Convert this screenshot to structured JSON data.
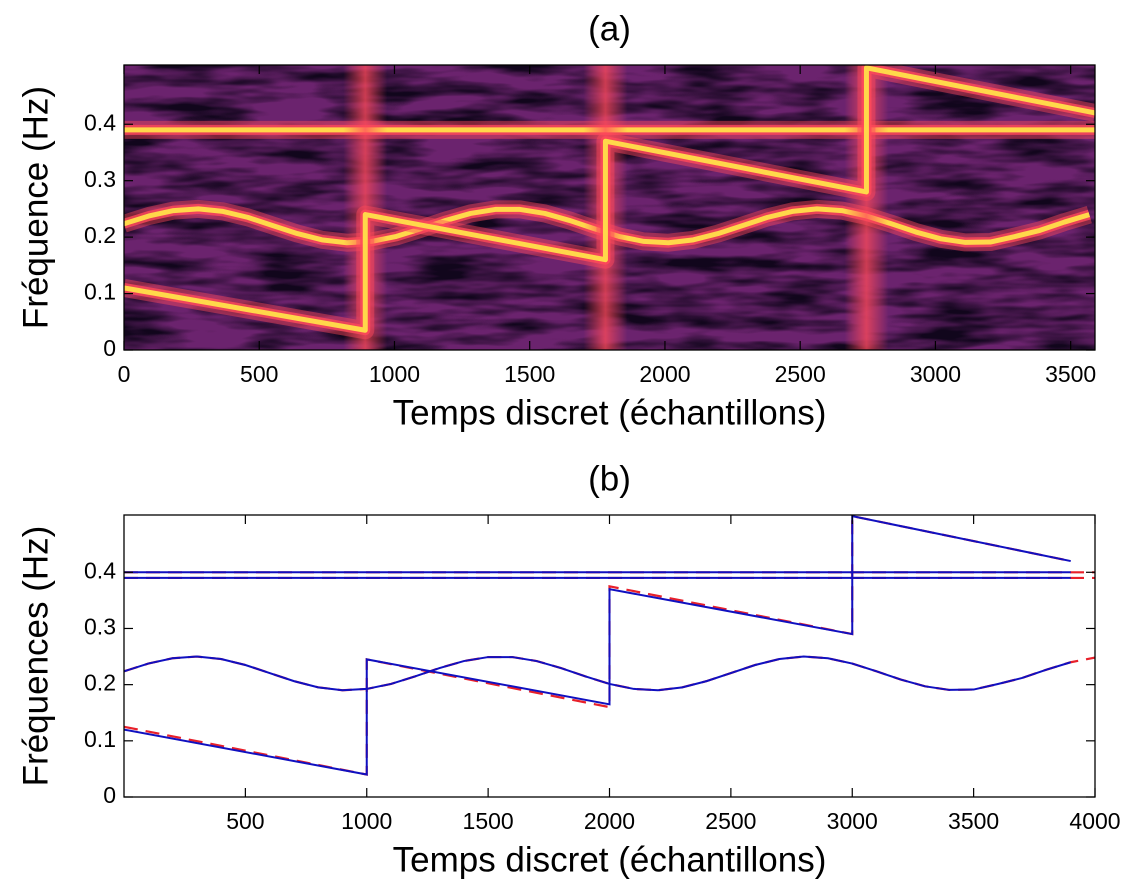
{
  "chart_data": [
    {
      "type": "spectrogram",
      "title": "(a)",
      "xlabel": "Temps discret (échantillons)",
      "ylabel": "Fréquence (Hz)",
      "xlim": [
        0,
        3590
      ],
      "ylim": [
        0,
        0.505
      ],
      "xticks": [
        0,
        500,
        1000,
        1500,
        2000,
        2500,
        3000,
        3500
      ],
      "yticks": [
        0,
        0.1,
        0.2,
        0.3,
        0.4
      ],
      "background": "#8b2d7e",
      "shade": "#32104f",
      "glow_color": "#ff4a5a",
      "ridge_color": "#ffd84a",
      "series": [
        {
          "x": [
            0,
            3590
          ],
          "values": [
            0.39,
            0.39
          ]
        },
        {
          "x": [
            0,
            92,
            183,
            275,
            366,
            458,
            549,
            641,
            732,
            824,
            915,
            1007,
            1098,
            1190,
            1281,
            1373,
            1464,
            1556,
            1647,
            1739,
            1830,
            1922,
            2013,
            2105,
            2196,
            2288,
            2379,
            2471,
            2562,
            2654,
            2745,
            2837,
            2928,
            3020,
            3111,
            3203,
            3294,
            3386,
            3477,
            3569
          ],
          "values": [
            0.2237,
            0.2375,
            0.247,
            0.25,
            0.2456,
            0.235,
            0.2207,
            0.2063,
            0.1952,
            0.1901,
            0.1924,
            0.2013,
            0.2148,
            0.2296,
            0.242,
            0.2491,
            0.2491,
            0.242,
            0.2296,
            0.2148,
            0.2013,
            0.1924,
            0.1901,
            0.1952,
            0.2063,
            0.2207,
            0.235,
            0.2456,
            0.25,
            0.247,
            0.2375,
            0.2237,
            0.209,
            0.197,
            0.1906,
            0.1913,
            0.2011,
            0.2119,
            0.2267,
            0.2399
          ]
        },
        {
          "x": [
            0,
            892,
            892,
            1780,
            1780,
            2745,
            2745,
            3590
          ],
          "values": [
            0.11,
            0.035,
            0.24,
            0.16,
            0.37,
            0.28,
            0.5,
            0.42
          ]
        }
      ]
    },
    {
      "type": "line",
      "title": "(b)",
      "xlabel": "Temps discret (échantillons)",
      "ylabel": "Fréquences (Hz)",
      "xlim": [
        0,
        4000
      ],
      "ylim": [
        0,
        0.502
      ],
      "xticks": [
        500,
        1000,
        1500,
        2000,
        2500,
        3000,
        3500,
        4000
      ],
      "yticks": [
        0,
        0.1,
        0.2,
        0.3,
        0.4
      ],
      "series": [
        {
          "color": "#e8202a",
          "style": "dashed",
          "x": [
            0,
            4000
          ],
          "values": [
            0.4,
            0.4
          ]
        },
        {
          "color": "#e8202a",
          "style": "dashed",
          "x": [
            0,
            4000
          ],
          "values": [
            0.39,
            0.39
          ]
        },
        {
          "color": "#e8202a",
          "style": "dashed",
          "x": [
            0,
            100,
            200,
            300,
            400,
            500,
            600,
            700,
            800,
            900,
            1000,
            1100,
            1200,
            1300,
            1400,
            1500,
            1600,
            1700,
            1800,
            1900,
            2000,
            2100,
            2200,
            2300,
            2400,
            2500,
            2600,
            2700,
            2800,
            2900,
            3000,
            3100,
            3200,
            3300,
            3400,
            3500,
            3600,
            3700,
            3800,
            3900,
            4000
          ],
          "values": [
            0.2237,
            0.2375,
            0.247,
            0.25,
            0.2456,
            0.235,
            0.2207,
            0.2063,
            0.1952,
            0.1901,
            0.1924,
            0.2013,
            0.2148,
            0.2296,
            0.242,
            0.2491,
            0.2491,
            0.242,
            0.2296,
            0.2148,
            0.2013,
            0.1924,
            0.1901,
            0.1952,
            0.2063,
            0.2207,
            0.235,
            0.2456,
            0.25,
            0.247,
            0.2375,
            0.2237,
            0.209,
            0.197,
            0.1906,
            0.1913,
            0.2011,
            0.2119,
            0.2267,
            0.2399,
            0.2482
          ]
        },
        {
          "color": "#e8202a",
          "style": "dashed",
          "x": [
            0,
            1000,
            1000,
            2000,
            2000,
            3000,
            3000,
            3900
          ],
          "values": [
            0.125,
            0.04,
            0.245,
            0.16,
            0.375,
            0.29,
            0.5,
            0.42
          ]
        },
        {
          "color": "#1010c0",
          "style": "solid",
          "x": [
            0,
            3900
          ],
          "values": [
            0.4,
            0.4
          ]
        },
        {
          "color": "#1010c0",
          "style": "solid",
          "x": [
            0,
            3900
          ],
          "values": [
            0.39,
            0.39
          ]
        },
        {
          "color": "#1010c0",
          "style": "solid",
          "x": [
            0,
            100,
            200,
            300,
            400,
            500,
            600,
            700,
            800,
            900,
            1000,
            1100,
            1200,
            1300,
            1400,
            1500,
            1600,
            1700,
            1800,
            1900,
            2000,
            2100,
            2200,
            2300,
            2400,
            2500,
            2600,
            2700,
            2800,
            2900,
            3000,
            3100,
            3200,
            3300,
            3400,
            3500,
            3600,
            3700,
            3800,
            3900
          ],
          "values": [
            0.2237,
            0.2375,
            0.247,
            0.25,
            0.2456,
            0.235,
            0.2207,
            0.2063,
            0.1952,
            0.1901,
            0.1924,
            0.2013,
            0.2148,
            0.2296,
            0.242,
            0.2491,
            0.2491,
            0.242,
            0.2296,
            0.2148,
            0.2013,
            0.1924,
            0.1901,
            0.1952,
            0.2063,
            0.2207,
            0.235,
            0.2456,
            0.25,
            0.247,
            0.2375,
            0.2237,
            0.209,
            0.197,
            0.1906,
            0.1913,
            0.2011,
            0.2119,
            0.2267,
            0.2399
          ]
        },
        {
          "color": "#1010c0",
          "style": "solid",
          "x": [
            0,
            1000,
            1000,
            2000,
            2000,
            3000,
            3000,
            3900
          ],
          "values": [
            0.12,
            0.04,
            0.245,
            0.165,
            0.37,
            0.29,
            0.5,
            0.42
          ]
        }
      ]
    }
  ]
}
